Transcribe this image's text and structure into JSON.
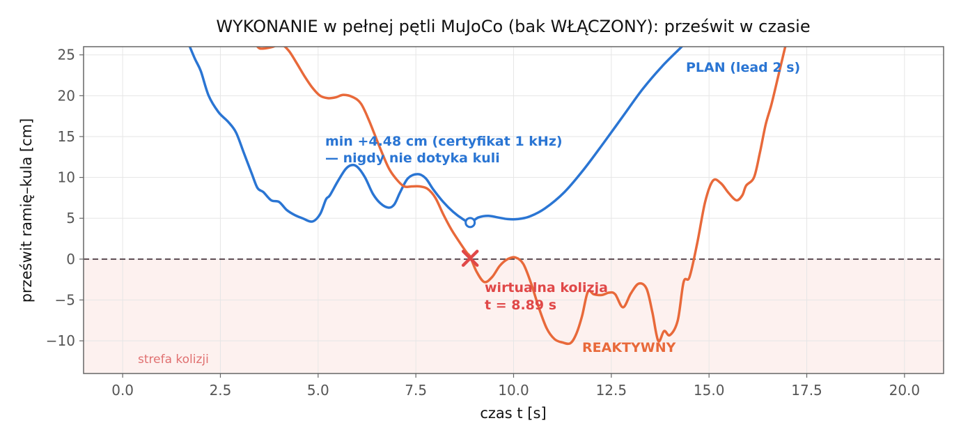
{
  "chart_data": {
    "type": "line",
    "title": "WYKONANIE w pełnej pętli MuJoCo (bak WŁĄCZONY): prześwit w czasie",
    "xlabel": "czas t [s]",
    "ylabel": "prześwit ramię–kula [cm]",
    "xlim": [
      -1.0,
      21.0
    ],
    "ylim": [
      -14.0,
      26.0
    ],
    "xticks": [
      0.0,
      2.5,
      5.0,
      7.5,
      10.0,
      12.5,
      15.0,
      17.5,
      20.0
    ],
    "xtick_labels": [
      "0.0",
      "2.5",
      "5.0",
      "7.5",
      "10.0",
      "12.5",
      "15.0",
      "17.5",
      "20.0"
    ],
    "yticks": [
      -10,
      -5,
      0,
      5,
      10,
      15,
      20,
      25
    ],
    "ytick_labels": [
      "−10",
      "−5",
      "0",
      "5",
      "10",
      "15",
      "20",
      "25"
    ],
    "grid": true,
    "series": [
      {
        "name": "PLAN (lead 2 s)",
        "color": "#2a75d3",
        "x": [
          1.7,
          1.85,
          2.0,
          2.2,
          2.45,
          2.7,
          2.9,
          3.1,
          3.3,
          3.45,
          3.6,
          3.8,
          4.0,
          4.2,
          4.4,
          4.6,
          4.85,
          5.05,
          5.2,
          5.3,
          5.5,
          5.7,
          5.85,
          6.0,
          6.2,
          6.4,
          6.6,
          6.8,
          6.95,
          7.1,
          7.3,
          7.55,
          7.75,
          7.95,
          8.2,
          8.45,
          8.7,
          8.89,
          9.1,
          9.35,
          9.6,
          9.85,
          10.1,
          10.4,
          10.8,
          11.3,
          11.8,
          12.3,
          12.8,
          13.3,
          13.8,
          14.3,
          14.7
        ],
        "y": [
          26.2,
          24.5,
          23.0,
          20.0,
          18.0,
          16.8,
          15.5,
          13.0,
          10.5,
          8.7,
          8.2,
          7.2,
          7.0,
          6.0,
          5.4,
          5.0,
          4.6,
          5.5,
          7.3,
          7.8,
          9.5,
          11.0,
          11.5,
          11.3,
          10.0,
          8.0,
          6.8,
          6.3,
          6.7,
          8.2,
          9.9,
          10.4,
          9.9,
          8.5,
          7.0,
          5.8,
          4.9,
          4.48,
          5.1,
          5.3,
          5.1,
          4.9,
          4.9,
          5.2,
          6.2,
          8.2,
          11.0,
          14.2,
          17.5,
          20.8,
          23.6,
          26.0,
          28.0
        ]
      },
      {
        "name": "REAKTYWNY",
        "color": "#e8693a",
        "x": [
          3.4,
          3.5,
          3.65,
          3.85,
          4.05,
          4.25,
          4.45,
          4.65,
          4.85,
          5.05,
          5.25,
          5.45,
          5.65,
          5.9,
          6.1,
          6.3,
          6.55,
          6.8,
          7.0,
          7.2,
          7.4,
          7.6,
          7.8,
          8.0,
          8.2,
          8.4,
          8.6,
          8.8,
          8.89,
          9.05,
          9.25,
          9.45,
          9.65,
          9.85,
          10.05,
          10.25,
          10.45,
          10.65,
          10.85,
          11.05,
          11.25,
          11.45,
          11.6,
          11.75,
          11.9,
          12.05,
          12.25,
          12.45,
          12.6,
          12.8,
          13.0,
          13.2,
          13.4,
          13.55,
          13.7,
          13.85,
          14.0,
          14.2,
          14.35,
          14.5,
          14.7,
          14.9,
          15.1,
          15.3,
          15.5,
          15.7,
          15.85,
          15.95,
          16.15,
          16.3,
          16.45,
          16.6,
          16.8,
          16.95
        ],
        "y": [
          26.3,
          25.8,
          25.8,
          26.0,
          26.3,
          25.5,
          24.0,
          22.4,
          21.0,
          20.0,
          19.7,
          19.8,
          20.1,
          19.8,
          19.0,
          17.0,
          14.0,
          11.2,
          9.8,
          8.9,
          8.9,
          8.9,
          8.6,
          7.5,
          5.5,
          3.7,
          2.2,
          0.8,
          0.3,
          -1.5,
          -2.8,
          -2.2,
          -0.8,
          0.0,
          0.2,
          -0.6,
          -3.0,
          -6.0,
          -8.5,
          -9.8,
          -10.2,
          -10.3,
          -9.2,
          -7.0,
          -4.0,
          -4.3,
          -4.4,
          -4.1,
          -4.3,
          -5.9,
          -4.2,
          -3.0,
          -3.6,
          -6.5,
          -10.0,
          -8.8,
          -9.3,
          -7.5,
          -2.8,
          -2.2,
          2.0,
          7.0,
          9.6,
          9.3,
          8.1,
          7.2,
          7.8,
          9.0,
          10.0,
          13.0,
          16.5,
          19.0,
          23.0,
          26.0
        ]
      }
    ],
    "markers": {
      "plan_min": {
        "x": 8.89,
        "y": 4.48
      },
      "collision": {
        "x": 8.89,
        "y": 0.1
      }
    },
    "reference_line_y": 0,
    "collision_zone": {
      "y_from": -14,
      "y_to": 0
    },
    "annotations": {
      "plan_label": "PLAN (lead 2 s)",
      "min_line1": "min +4.48 cm (certyfikat 1 kHz)",
      "min_line2": "— nigdy nie dotyka kuli",
      "collision_line1": "wirtualna kolizja",
      "collision_line2": "t = 8.89 s",
      "reactive_label": "REAKTYWNY",
      "zone_label": "strefa kolizji"
    },
    "colors": {
      "plan": "#2a75d3",
      "reactive": "#e8693a",
      "collision": "#e04848",
      "zone_fill": "#fdf1ef",
      "zone_text": "#e07070",
      "frame": "#666666",
      "zero_line": "#5a4a50"
    }
  }
}
